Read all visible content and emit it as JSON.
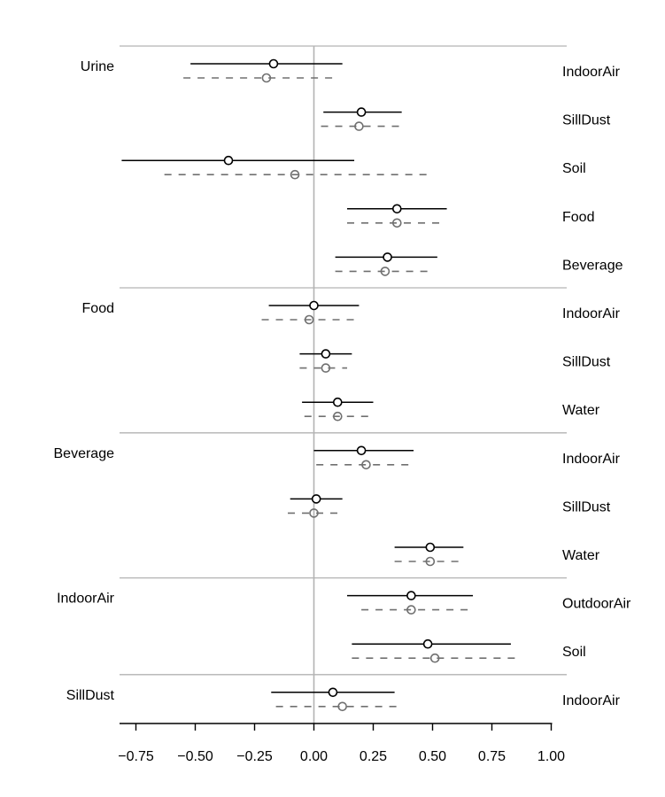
{
  "chart_data": {
    "type": "forest",
    "xlim": [
      -0.8,
      1.0
    ],
    "xticks": [
      "−0.75",
      "−0.50",
      "−0.25",
      "0.00",
      "0.25",
      "0.50",
      "0.75",
      "1.00"
    ],
    "xtick_values": [
      -0.75,
      -0.5,
      -0.25,
      0,
      0.25,
      0.5,
      0.75,
      1.0
    ],
    "reference_line": 0,
    "groups": [
      {
        "label": "Urine",
        "rows": [
          {
            "label": "IndoorAir",
            "primary": {
              "est": -0.17,
              "lo": -0.52,
              "hi": 0.12
            },
            "secondary": {
              "est": -0.2,
              "lo": -0.55,
              "hi": 0.1
            }
          },
          {
            "label": "SillDust",
            "primary": {
              "est": 0.2,
              "lo": 0.04,
              "hi": 0.37
            },
            "secondary": {
              "est": 0.19,
              "lo": 0.03,
              "hi": 0.36
            }
          },
          {
            "label": "Soil",
            "primary": {
              "est": -0.36,
              "lo": -0.81,
              "hi": 0.17
            },
            "secondary": {
              "est": -0.08,
              "lo": -0.63,
              "hi": 0.49
            }
          },
          {
            "label": "Food",
            "primary": {
              "est": 0.35,
              "lo": 0.14,
              "hi": 0.56
            },
            "secondary": {
              "est": 0.35,
              "lo": 0.14,
              "hi": 0.53
            }
          },
          {
            "label": "Beverage",
            "primary": {
              "est": 0.31,
              "lo": 0.09,
              "hi": 0.52
            },
            "secondary": {
              "est": 0.3,
              "lo": 0.09,
              "hi": 0.49
            }
          }
        ]
      },
      {
        "label": "Food",
        "rows": [
          {
            "label": "IndoorAir",
            "primary": {
              "est": 0.0,
              "lo": -0.19,
              "hi": 0.19
            },
            "secondary": {
              "est": -0.02,
              "lo": -0.22,
              "hi": 0.18
            }
          },
          {
            "label": "SillDust",
            "primary": {
              "est": 0.05,
              "lo": -0.06,
              "hi": 0.16
            },
            "secondary": {
              "est": 0.05,
              "lo": -0.06,
              "hi": 0.14
            }
          },
          {
            "label": "Water",
            "primary": {
              "est": 0.1,
              "lo": -0.05,
              "hi": 0.25
            },
            "secondary": {
              "est": 0.1,
              "lo": -0.04,
              "hi": 0.23
            }
          }
        ]
      },
      {
        "label": "Beverage",
        "rows": [
          {
            "label": "IndoorAir",
            "primary": {
              "est": 0.2,
              "lo": 0.0,
              "hi": 0.42
            },
            "secondary": {
              "est": 0.22,
              "lo": 0.01,
              "hi": 0.41
            }
          },
          {
            "label": "SillDust",
            "primary": {
              "est": 0.01,
              "lo": -0.1,
              "hi": 0.12
            },
            "secondary": {
              "est": 0.0,
              "lo": -0.11,
              "hi": 0.1
            }
          },
          {
            "label": "Water",
            "primary": {
              "est": 0.49,
              "lo": 0.34,
              "hi": 0.63
            },
            "secondary": {
              "est": 0.49,
              "lo": 0.34,
              "hi": 0.62
            }
          }
        ]
      },
      {
        "label": "IndoorAir",
        "rows": [
          {
            "label": "OutdoorAir",
            "primary": {
              "est": 0.41,
              "lo": 0.14,
              "hi": 0.67
            },
            "secondary": {
              "est": 0.41,
              "lo": 0.2,
              "hi": 0.66
            }
          },
          {
            "label": "Soil",
            "primary": {
              "est": 0.48,
              "lo": 0.16,
              "hi": 0.83
            },
            "secondary": {
              "est": 0.51,
              "lo": 0.16,
              "hi": 0.85
            }
          }
        ]
      },
      {
        "label": "SillDust",
        "rows": [
          {
            "label": "IndoorAir",
            "primary": {
              "est": 0.08,
              "lo": -0.18,
              "hi": 0.34
            },
            "secondary": {
              "est": 0.12,
              "lo": -0.16,
              "hi": 0.36
            }
          }
        ]
      }
    ],
    "colors": {
      "primary": "#000000",
      "secondary": "#707070",
      "separator": "#b3b3b3",
      "reference": "#b3b3b3"
    }
  }
}
